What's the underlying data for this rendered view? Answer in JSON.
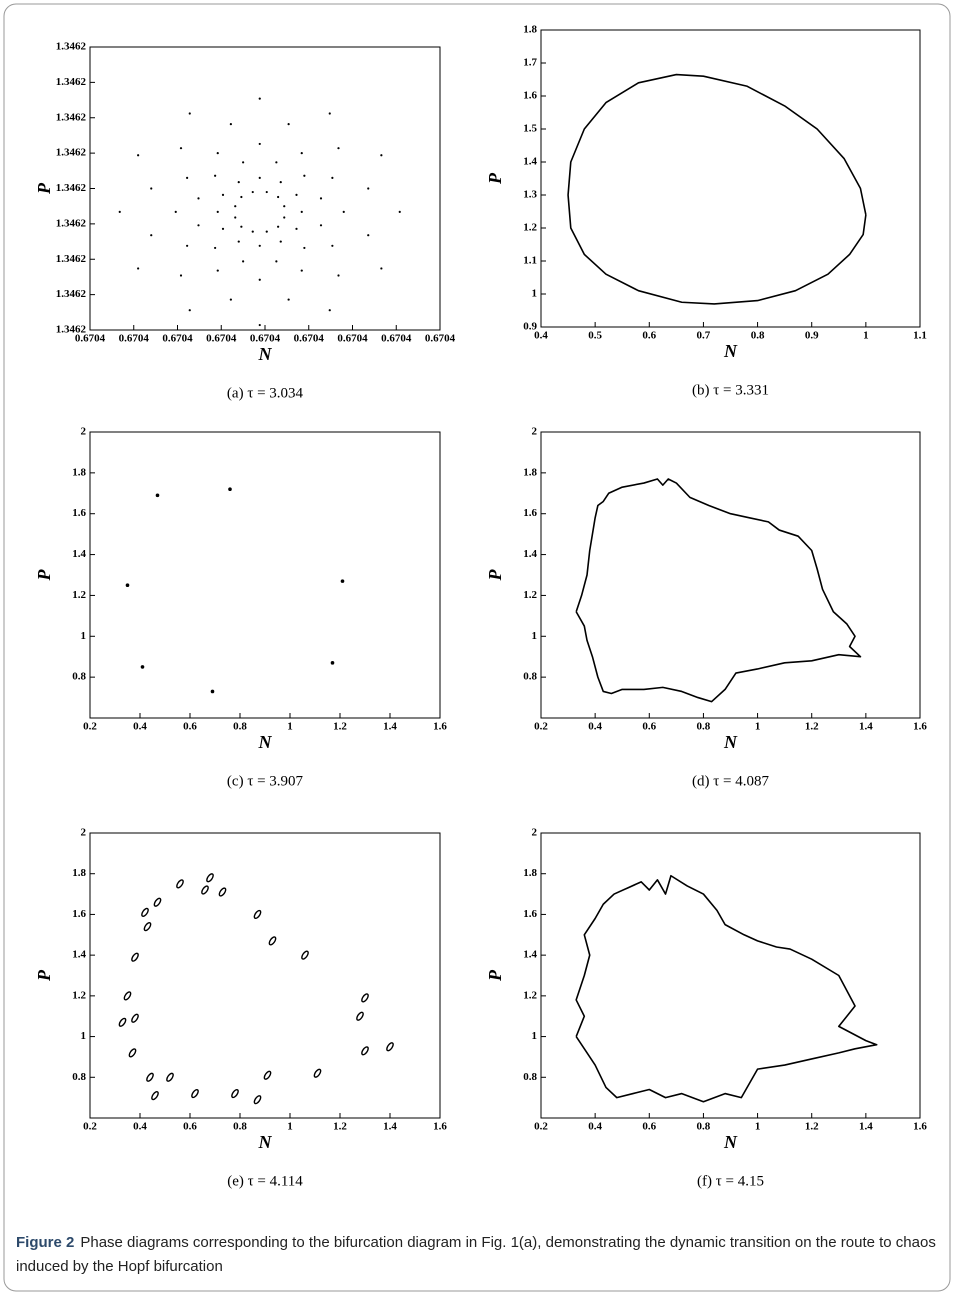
{
  "chart_data": [
    {
      "type": "scatter",
      "marker": "dot",
      "x_label": "N",
      "y_label": "P",
      "caption": "(a) τ = 3.034",
      "color": "#000000",
      "xlim": [
        0.67038,
        0.67042
      ],
      "xticks": [
        {
          "value": 0.67038,
          "label": "0.6704"
        },
        {
          "value": 0.670385,
          "label": "0.6704"
        },
        {
          "value": 0.67039,
          "label": "0.6704"
        },
        {
          "value": 0.670395,
          "label": "0.6704"
        },
        0.6704,
        {
          "value": 0.670405,
          "label": "0.6704"
        },
        {
          "value": 0.67041,
          "label": "0.6704"
        },
        {
          "value": 0.670415,
          "label": "0.6704"
        },
        {
          "value": 0.67042,
          "label": "0.6704"
        }
      ],
      "ylim": [
        1.34618,
        1.34622
      ],
      "yticks": [
        {
          "value": 1.34618,
          "label": "1.3462"
        },
        {
          "value": 1.346185,
          "label": "1.3462"
        },
        {
          "value": 1.34619,
          "label": "1.3462"
        },
        {
          "value": 1.346195,
          "label": "1.3462"
        },
        1.3462,
        {
          "value": 1.346205,
          "label": "1.3462"
        },
        {
          "value": 1.34621,
          "label": "1.3462"
        },
        {
          "value": 1.346215,
          "label": "1.3462"
        },
        {
          "value": 1.34622,
          "label": "1.3462"
        }
      ],
      "x": [
        0.6704154,
        0.6704118,
        0.6704077,
        0.6704045,
        0.6704018,
        0.6704002,
        0.6704133,
        0.6704084,
        0.6704042,
        0.6704013,
        0.6703994,
        0.6703986,
        0.6704074,
        0.6704027,
        0.6703994,
        0.6703975,
        0.670397,
        0.6703973,
        0.6703994,
        0.6703961,
        0.6703946,
        0.6703943,
        0.6703952,
        0.6703966,
        0.6703914,
        0.6703904,
        0.6703911,
        0.6703924,
        0.6703946,
        0.6703966,
        0.6703855,
        0.670387,
        0.6703898,
        0.6703924,
        0.6703952,
        0.6703973,
        0.6703834,
        0.670387,
        0.6703911,
        0.6703943,
        0.670397,
        0.6703986,
        0.6703855,
        0.6703904,
        0.6703946,
        0.6703975,
        0.6703994,
        0.6704002,
        0.6703914,
        0.6703961,
        0.6703994,
        0.6704013,
        0.6704018,
        0.6704015,
        0.6703994,
        0.6704027,
        0.6704042,
        0.6704045,
        0.6704036,
        0.6704022,
        0.6704074,
        0.6704084,
        0.6704077,
        0.6704064,
        0.6704042,
        0.6704022,
        0.6704133,
        0.6704118,
        0.670409,
        0.6704064,
        0.6704036,
        0.6704015
      ],
      "values": [
        1.3461967,
        1.3462,
        1.3462015,
        1.3462018,
        1.3462009,
        1.3461995,
        1.3462047,
        1.3462057,
        1.346205,
        1.3462037,
        1.3462015,
        1.3461995,
        1.3462106,
        1.3462091,
        1.3462063,
        1.3462037,
        1.3462009,
        1.3461988,
        1.3462127,
        1.3462091,
        1.346205,
        1.3462018,
        1.3461991,
        1.3461975,
        1.3462106,
        1.3462057,
        1.3462015,
        1.3461986,
        1.3461967,
        1.3461959,
        1.3462047,
        1.3462,
        1.3461967,
        1.3461948,
        1.3461943,
        1.3461946,
        1.3461967,
        1.3461934,
        1.3461919,
        1.3461916,
        1.3461925,
        1.3461939,
        1.3461887,
        1.3461877,
        1.3461884,
        1.3461897,
        1.3461919,
        1.3461939,
        1.3461828,
        1.3461843,
        1.3461871,
        1.3461897,
        1.3461925,
        1.3461946,
        1.3461807,
        1.3461843,
        1.3461884,
        1.3461916,
        1.3461943,
        1.3461959,
        1.3461828,
        1.3461877,
        1.3461919,
        1.3461948,
        1.3461967,
        1.3461975,
        1.3461887,
        1.3461934,
        1.3461967,
        1.3461986,
        1.3461991,
        1.3461988
      ]
    },
    {
      "type": "line",
      "x_label": "N",
      "y_label": "P",
      "caption": "(b) τ = 3.331",
      "color": "#000000",
      "xlim": [
        0.4,
        1.1
      ],
      "xticks": [
        0.4,
        0.5,
        0.6,
        0.7,
        0.8,
        0.9,
        1,
        1.1
      ],
      "ylim": [
        0.9,
        1.8
      ],
      "yticks": [
        0.9,
        1,
        1.1,
        1.2,
        1.3,
        1.4,
        1.5,
        1.6,
        1.7,
        1.8
      ],
      "x": [
        1.0,
        0.99,
        0.96,
        0.91,
        0.85,
        0.78,
        0.7,
        0.65,
        0.58,
        0.52,
        0.48,
        0.455,
        0.45,
        0.455,
        0.48,
        0.52,
        0.58,
        0.66,
        0.72,
        0.8,
        0.87,
        0.93,
        0.97,
        0.995,
        1.0
      ],
      "values": [
        1.24,
        1.32,
        1.41,
        1.5,
        1.57,
        1.63,
        1.66,
        1.665,
        1.64,
        1.58,
        1.5,
        1.4,
        1.3,
        1.2,
        1.12,
        1.06,
        1.01,
        0.975,
        0.97,
        0.98,
        1.01,
        1.06,
        1.12,
        1.18,
        1.24
      ]
    },
    {
      "type": "scatter",
      "marker": "dot",
      "x_label": "N",
      "y_label": "P",
      "caption": "(c) τ = 3.907",
      "color": "#000000",
      "xlim": [
        0.2,
        1.6
      ],
      "xticks": [
        0.2,
        0.4,
        0.6,
        0.8,
        1,
        1.2,
        1.4,
        1.6
      ],
      "ylim": [
        0.6,
        2
      ],
      "yticks": [
        0.8,
        1,
        1.2,
        1.4,
        1.6,
        1.8,
        2
      ],
      "x": [
        0.47,
        0.76,
        0.35,
        1.21,
        0.41,
        0.69,
        1.17
      ],
      "values": [
        1.69,
        1.72,
        1.25,
        1.27,
        0.85,
        0.73,
        0.87
      ]
    },
    {
      "type": "line",
      "x_label": "N",
      "y_label": "P",
      "caption": "(d) τ = 4.087",
      "color": "#000000",
      "xlim": [
        0.2,
        1.6
      ],
      "xticks": [
        0.2,
        0.4,
        0.6,
        0.8,
        1,
        1.2,
        1.4,
        1.6
      ],
      "ylim": [
        0.6,
        2
      ],
      "yticks": [
        0.8,
        1,
        1.2,
        1.4,
        1.6,
        1.8,
        2
      ],
      "x": [
        0.33,
        0.35,
        0.37,
        0.38,
        0.39,
        0.4,
        0.41,
        0.43,
        0.45,
        0.5,
        0.58,
        0.63,
        0.65,
        0.67,
        0.7,
        0.75,
        0.82,
        0.9,
        0.97,
        1.04,
        1.08,
        1.15,
        1.2,
        1.22,
        1.24,
        1.28,
        1.33,
        1.36,
        1.34,
        1.38,
        1.3,
        1.2,
        1.1,
        1.0,
        0.92,
        0.88,
        0.83,
        0.78,
        0.72,
        0.65,
        0.58,
        0.5,
        0.46,
        0.43,
        0.41,
        0.39,
        0.37,
        0.36,
        0.33
      ],
      "values": [
        1.12,
        1.2,
        1.3,
        1.42,
        1.5,
        1.58,
        1.64,
        1.66,
        1.7,
        1.73,
        1.75,
        1.77,
        1.74,
        1.77,
        1.75,
        1.68,
        1.64,
        1.6,
        1.58,
        1.56,
        1.52,
        1.49,
        1.42,
        1.33,
        1.23,
        1.12,
        1.06,
        1.0,
        0.95,
        0.9,
        0.91,
        0.88,
        0.87,
        0.84,
        0.82,
        0.74,
        0.68,
        0.7,
        0.73,
        0.75,
        0.74,
        0.74,
        0.72,
        0.73,
        0.8,
        0.9,
        0.98,
        1.05,
        1.12
      ]
    },
    {
      "type": "scatter",
      "marker": "ellipse",
      "x_label": "N",
      "y_label": "P",
      "caption": "(e) τ = 4.114",
      "color": "#000000",
      "xlim": [
        0.2,
        1.6
      ],
      "xticks": [
        0.2,
        0.4,
        0.6,
        0.8,
        1,
        1.2,
        1.4,
        1.6
      ],
      "ylim": [
        0.6,
        2
      ],
      "yticks": [
        0.8,
        1,
        1.2,
        1.4,
        1.6,
        1.8,
        2
      ],
      "x": [
        0.56,
        0.68,
        0.66,
        0.73,
        0.42,
        0.47,
        0.43,
        0.87,
        0.93,
        0.38,
        1.06,
        0.35,
        0.33,
        0.38,
        1.3,
        1.28,
        0.37,
        1.3,
        1.4,
        0.44,
        0.52,
        0.46,
        0.62,
        0.78,
        0.87,
        0.91,
        1.11
      ],
      "values": [
        1.75,
        1.78,
        1.72,
        1.71,
        1.61,
        1.66,
        1.54,
        1.6,
        1.47,
        1.39,
        1.4,
        1.2,
        1.07,
        1.09,
        1.19,
        1.1,
        0.92,
        0.93,
        0.95,
        0.8,
        0.8,
        0.71,
        0.72,
        0.72,
        0.69,
        0.81,
        0.82
      ]
    },
    {
      "type": "line",
      "x_label": "N",
      "y_label": "P",
      "caption": "(f) τ = 4.15",
      "color": "#000000",
      "xlim": [
        0.2,
        1.6
      ],
      "xticks": [
        0.2,
        0.4,
        0.6,
        0.8,
        1,
        1.2,
        1.4,
        1.6
      ],
      "ylim": [
        0.6,
        2
      ],
      "yticks": [
        0.8,
        1,
        1.2,
        1.4,
        1.6,
        1.8,
        2
      ],
      "x": [
        0.33,
        0.36,
        0.33,
        0.36,
        0.38,
        0.36,
        0.4,
        0.43,
        0.47,
        0.52,
        0.57,
        0.6,
        0.63,
        0.66,
        0.68,
        0.74,
        0.8,
        0.85,
        0.88,
        0.95,
        1.0,
        1.07,
        1.12,
        1.2,
        1.3,
        1.36,
        1.3,
        1.4,
        1.44,
        1.36,
        1.3,
        1.2,
        1.1,
        1.0,
        0.94,
        0.88,
        0.8,
        0.72,
        0.66,
        0.6,
        0.54,
        0.48,
        0.44,
        0.4,
        0.37,
        0.33
      ],
      "values": [
        1.0,
        1.1,
        1.18,
        1.3,
        1.4,
        1.5,
        1.58,
        1.65,
        1.7,
        1.73,
        1.76,
        1.72,
        1.77,
        1.7,
        1.79,
        1.74,
        1.7,
        1.62,
        1.55,
        1.5,
        1.47,
        1.44,
        1.43,
        1.38,
        1.3,
        1.15,
        1.05,
        0.98,
        0.96,
        0.94,
        0.92,
        0.89,
        0.86,
        0.84,
        0.7,
        0.72,
        0.68,
        0.72,
        0.7,
        0.74,
        0.72,
        0.7,
        0.75,
        0.86,
        0.92,
        1.0
      ]
    }
  ],
  "figure_caption": {
    "label": "Figure 2",
    "text": "Phase diagrams corresponding to the bifurcation diagram in Fig. 1(a), demonstrating the dynamic transition on the route to chaos induced by the Hopf bifurcation"
  }
}
